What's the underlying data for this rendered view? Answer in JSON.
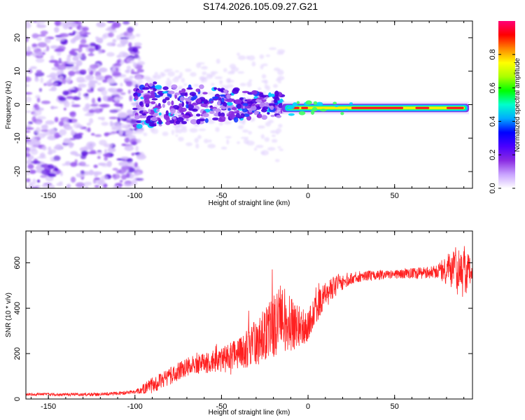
{
  "title": "S174.2026.105.09.27.G21",
  "chart_data": [
    {
      "type": "heatmap",
      "name": "spectrogram",
      "xlabel": "Height of straight line (km)",
      "ylabel": "Frequency (Hz)",
      "xlim": [
        -163,
        95
      ],
      "ylim": [
        -25,
        25
      ],
      "xticks": [
        -150,
        -100,
        -50,
        0,
        50
      ],
      "yticks": [
        -20,
        -10,
        0,
        10,
        20
      ],
      "colorbar": {
        "label": "Normalized spectral amplitude",
        "range": [
          0,
          1
        ],
        "ticks": [
          "0.0",
          "0.2",
          "0.4",
          "0.6",
          "0.8"
        ],
        "colors": [
          "#ffffff",
          "#c9a3ff",
          "#8a2be2",
          "#4a00ff",
          "#0000ff",
          "#00aaff",
          "#00ffcc",
          "#00ff00",
          "#aaff00",
          "#ffff00",
          "#ff8800",
          "#ff0000",
          "#ff0077"
        ]
      },
      "features": {
        "noise_region": [
          -163,
          -100
        ],
        "scatter_region": [
          -100,
          -15
        ],
        "carrier_region": [
          -15,
          95
        ],
        "carrier_frequency": -1
      }
    },
    {
      "type": "line",
      "name": "snr",
      "xlabel": "Height of straight line (km)",
      "ylabel": "SNR (10 * v/v)",
      "xlim": [
        -163,
        95
      ],
      "ylim": [
        0,
        740
      ],
      "xticks": [
        -150,
        -100,
        -50,
        0,
        50
      ],
      "yticks": [
        0,
        200,
        400,
        600
      ],
      "color": "#ff2020",
      "trend": [
        [
          -163,
          20
        ],
        [
          -120,
          20
        ],
        [
          -100,
          30
        ],
        [
          -90,
          60
        ],
        [
          -80,
          100
        ],
        [
          -70,
          140
        ],
        [
          -60,
          160
        ],
        [
          -50,
          170
        ],
        [
          -40,
          200
        ],
        [
          -30,
          250
        ],
        [
          -20,
          320
        ],
        [
          -15,
          360
        ],
        [
          -10,
          330
        ],
        [
          -5,
          320
        ],
        [
          0,
          330
        ],
        [
          5,
          400
        ],
        [
          10,
          460
        ],
        [
          15,
          490
        ],
        [
          20,
          520
        ],
        [
          30,
          540
        ],
        [
          50,
          550
        ],
        [
          70,
          555
        ],
        [
          80,
          570
        ],
        [
          88,
          560
        ],
        [
          95,
          570
        ]
      ],
      "noise_amplitude": [
        [
          -163,
          6
        ],
        [
          -100,
          8
        ],
        [
          -90,
          35
        ],
        [
          -60,
          45
        ],
        [
          -40,
          70
        ],
        [
          -25,
          120
        ],
        [
          -15,
          150
        ],
        [
          -5,
          90
        ],
        [
          5,
          70
        ],
        [
          15,
          50
        ],
        [
          25,
          25
        ],
        [
          50,
          20
        ],
        [
          75,
          30
        ],
        [
          82,
          80
        ],
        [
          88,
          140
        ],
        [
          95,
          60
        ]
      ]
    }
  ]
}
